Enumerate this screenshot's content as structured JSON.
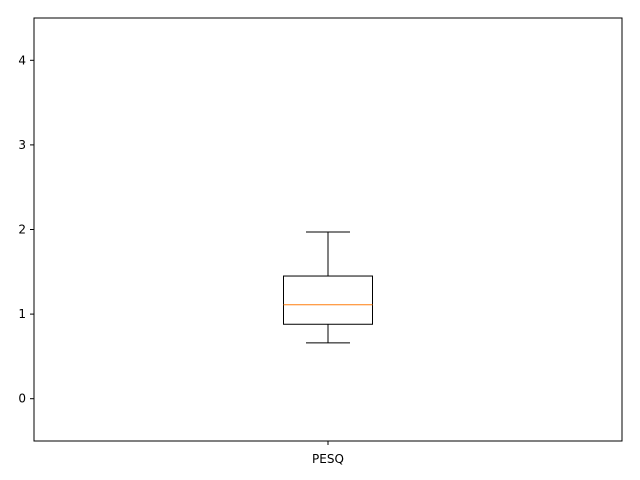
{
  "chart_data": {
    "type": "boxplot",
    "categories": [
      "PESQ"
    ],
    "boxes": [
      {
        "label": "PESQ",
        "whisker_low": 0.66,
        "q1": 0.88,
        "median": 1.11,
        "q3": 1.45,
        "whisker_high": 1.97
      }
    ],
    "ylim": [
      -0.5,
      4.5
    ],
    "yticks": [
      "0",
      "1",
      "2",
      "3",
      "4"
    ],
    "grid": false,
    "colors": {
      "box": "#000000",
      "median": "#ff7f0e"
    }
  }
}
